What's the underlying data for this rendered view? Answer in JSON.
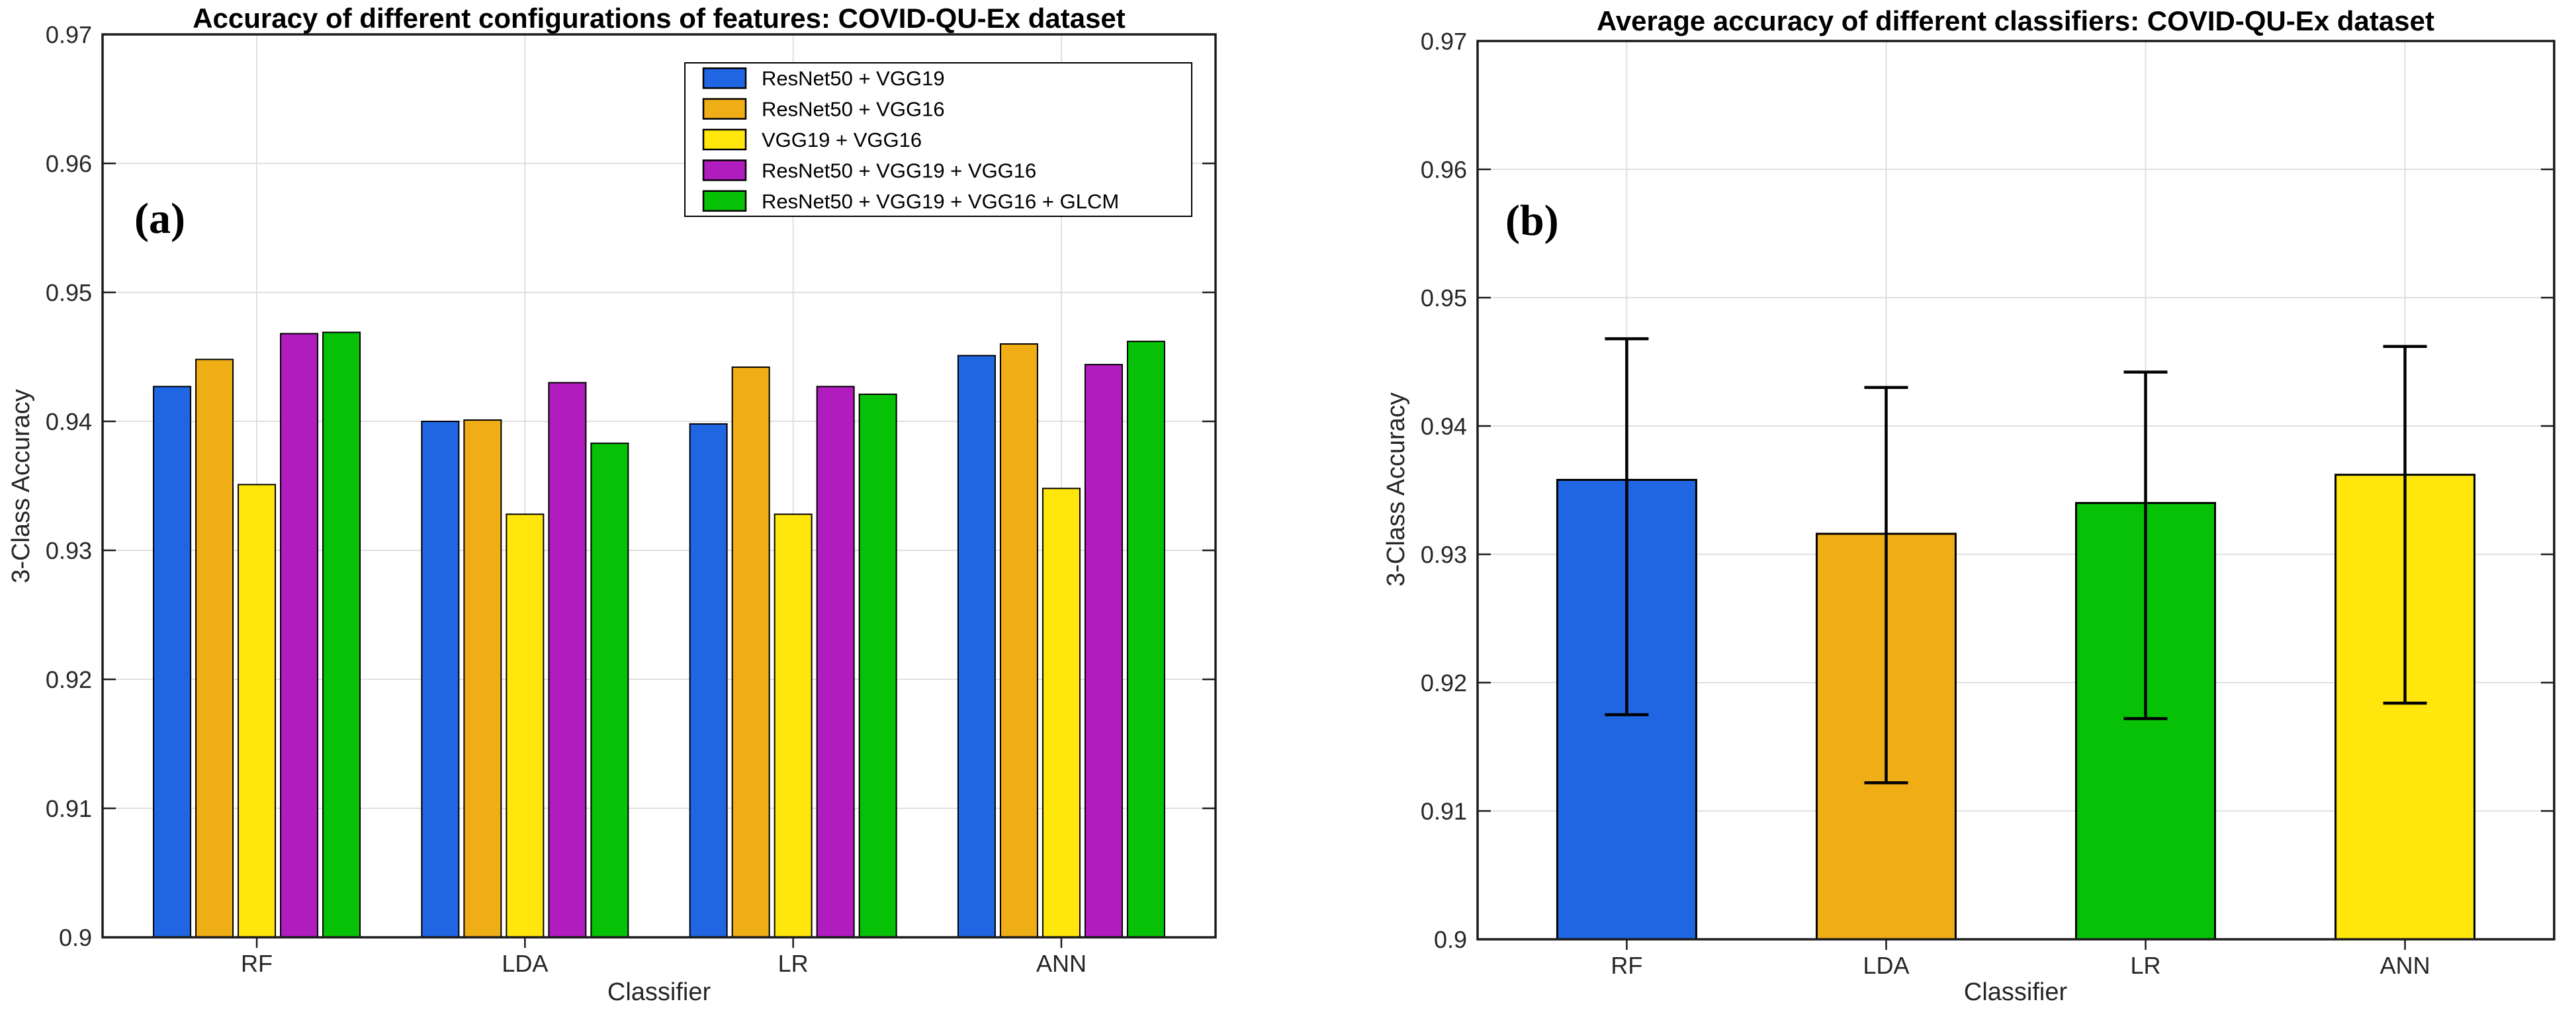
{
  "figure": {
    "description": "Two MATLAB-style bar chart panels comparing classifier accuracy on the COVID-QU-Ex dataset",
    "background": "#ffffff",
    "grid_color": "#e0e0e0",
    "axis_color": "#1a1a1a"
  },
  "chart_data": [
    {
      "type": "bar",
      "panel_label": "(a)",
      "title": "Accuracy of different configurations of features: COVID-QU-Ex dataset",
      "xlabel": "Classifier",
      "ylabel": "3-Class Accuracy",
      "categories": [
        "RF",
        "LDA",
        "LR",
        "ANN"
      ],
      "ylim": [
        0.9,
        0.97
      ],
      "ytick_step": 0.01,
      "grid": true,
      "legend_position": "top-right-inside",
      "series": [
        {
          "name": "ResNet50 + VGG19",
          "color": "#2066E3",
          "values": [
            0.9427,
            0.94,
            0.9398,
            0.9451
          ]
        },
        {
          "name": "ResNet50 + VGG16",
          "color": "#EFAD16",
          "values": [
            0.9448,
            0.9401,
            0.9442,
            0.946
          ]
        },
        {
          "name": "VGG19 + VGG16",
          "color": "#FFE60D",
          "values": [
            0.9351,
            0.9328,
            0.9328,
            0.9348
          ]
        },
        {
          "name": "ResNet50 + VGG19 + VGG16",
          "color": "#B11CBE",
          "values": [
            0.9468,
            0.943,
            0.9427,
            0.9444
          ]
        },
        {
          "name": "ResNet50 + VGG19 + VGG16 + GLCM",
          "color": "#07C107",
          "values": [
            0.9469,
            0.9383,
            0.9421,
            0.9462
          ]
        }
      ]
    },
    {
      "type": "bar",
      "panel_label": "(b)",
      "title": "Average accuracy of different classifiers: COVID-QU-Ex dataset",
      "xlabel": "Classifier",
      "ylabel": "3-Class Accuracy",
      "categories": [
        "RF",
        "LDA",
        "LR",
        "ANN"
      ],
      "ylim": [
        0.9,
        0.97
      ],
      "ytick_step": 0.01,
      "grid": true,
      "bar_colors": [
        "#2066E3",
        "#EFAD16",
        "#07C107",
        "#FFE60D"
      ],
      "values": [
        0.9358,
        0.9316,
        0.934,
        0.9362
      ],
      "error_low": [
        0.9175,
        0.9122,
        0.9172,
        0.9184
      ],
      "error_high": [
        0.9468,
        0.943,
        0.9442,
        0.9462
      ]
    }
  ]
}
